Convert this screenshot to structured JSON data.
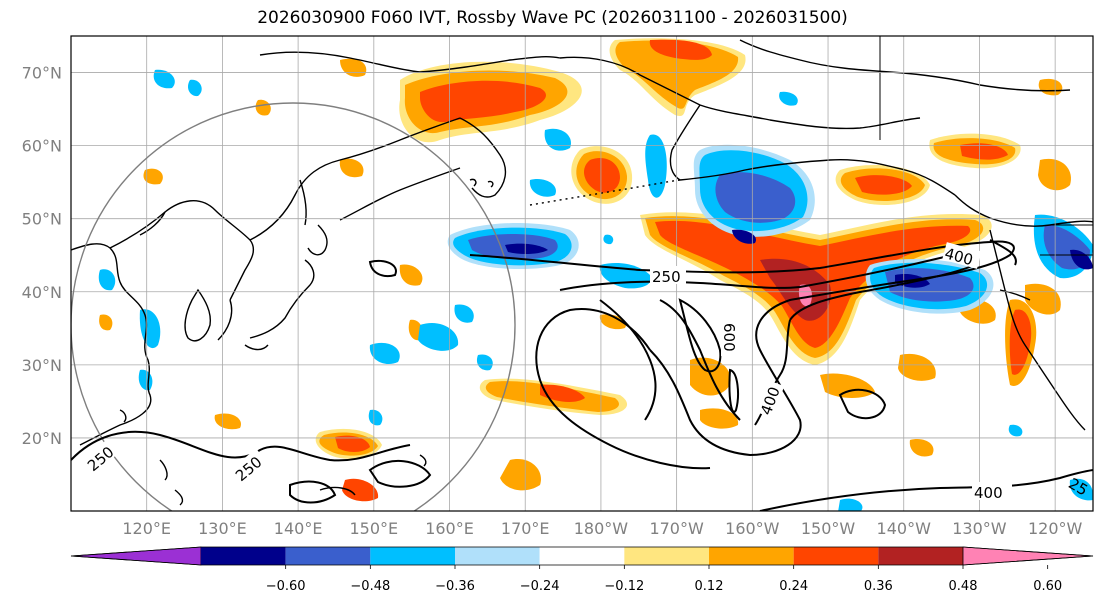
{
  "title": "2026030900 F060 IVT, Rossby Wave PC (2026031100 - 2026031500)",
  "map": {
    "type": "map",
    "projection": "PlateCarree, centered on Pacific",
    "lon_range": [
      110,
      245
    ],
    "lat_range": [
      10,
      75
    ],
    "x_ticks": [
      "120°E",
      "130°E",
      "140°E",
      "150°E",
      "160°E",
      "170°E",
      "180°W",
      "170°W",
      "160°W",
      "150°W",
      "140°W",
      "130°W",
      "120°W"
    ],
    "y_ticks": [
      "20°N",
      "30°N",
      "40°N",
      "50°N",
      "60°N",
      "70°N"
    ],
    "grid": true,
    "contour_labels": [
      "250",
      "250",
      "250",
      "400",
      "400",
      "400",
      "600",
      "25"
    ],
    "contour_levels": [
      250,
      400,
      600
    ],
    "circle": {
      "center_lon": 140,
      "center_lat": 36,
      "note": "grey circle outline"
    }
  },
  "colorbar": {
    "ticks": [
      "−0.60",
      "−0.48",
      "−0.36",
      "−0.24",
      "−0.12",
      "0.12",
      "0.24",
      "0.36",
      "0.48",
      "0.60"
    ],
    "colors": [
      "#9b30d4",
      "#00008b",
      "#3a5fcd",
      "#00bfff",
      "#b0e0fa",
      "#ffffff",
      "#ffe680",
      "#ffa500",
      "#ff4500",
      "#b22222",
      "#ff82b4"
    ],
    "extend": "both"
  }
}
